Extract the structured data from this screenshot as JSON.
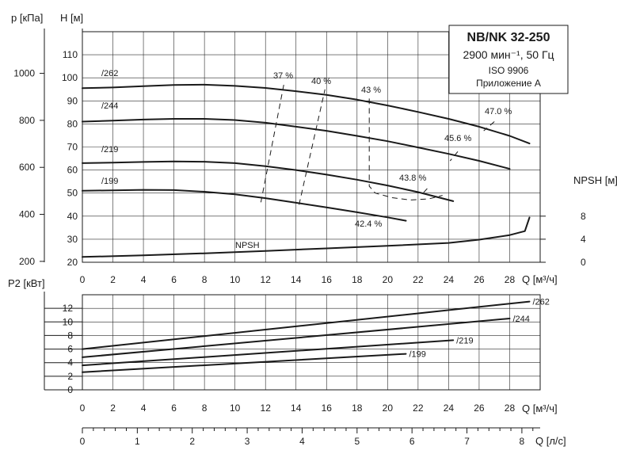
{
  "chart_data": [
    {
      "type": "line",
      "title": "NB/NK 32-250",
      "subtitle": "2900 мин⁻¹, 50 Гц",
      "notes": [
        "ISO 9906",
        "Приложение A"
      ],
      "xlabel": "Q [м³/ч]",
      "xlim": [
        0,
        30
      ],
      "x_ticks": [
        "0",
        "2",
        "4",
        "6",
        "8",
        "10",
        "12",
        "14",
        "16",
        "18",
        "20",
        "22",
        "24",
        "26",
        "28"
      ],
      "ylabel": "H [м]",
      "ylim": [
        20,
        120
      ],
      "y_ticks": [
        "20",
        "30",
        "40",
        "50",
        "60",
        "70",
        "80",
        "90",
        "100",
        "110"
      ],
      "y2label": "p [кПа]",
      "y2_ticks": [
        "200",
        "400",
        "600",
        "800",
        "1000"
      ],
      "y3label": "NPSH [м]",
      "y3_ticks": [
        "0",
        "4",
        "8"
      ],
      "series": [
        {
          "name": "/262",
          "x": [
            0,
            2,
            4,
            6,
            8,
            10,
            12,
            14,
            16,
            18,
            20,
            22,
            24,
            26,
            28,
            29.3
          ],
          "y": [
            95.5,
            95.8,
            96.4,
            96.9,
            97.0,
            96.5,
            95.6,
            94.2,
            92.6,
            90.5,
            88.0,
            85.2,
            82.2,
            78.8,
            74.8,
            71.5
          ]
        },
        {
          "name": "/244",
          "x": [
            0,
            2,
            4,
            6,
            8,
            10,
            12,
            14,
            16,
            18,
            20,
            22,
            24,
            26,
            28
          ],
          "y": [
            81.0,
            81.4,
            81.9,
            82.2,
            82.2,
            81.7,
            80.5,
            78.8,
            77.0,
            74.8,
            72.5,
            69.8,
            67.0,
            64.0,
            60.5
          ]
        },
        {
          "name": "/219",
          "x": [
            0,
            2,
            4,
            6,
            8,
            10,
            12,
            14,
            16,
            18,
            20,
            22,
            24.3
          ],
          "y": [
            63.0,
            63.2,
            63.5,
            63.7,
            63.6,
            63.0,
            61.7,
            60.0,
            58.0,
            55.8,
            53.3,
            50.4,
            46.5
          ]
        },
        {
          "name": "/199",
          "x": [
            0,
            2,
            4,
            6,
            8,
            10,
            12,
            14,
            16,
            18,
            20,
            21.2
          ],
          "y": [
            51.0,
            51.2,
            51.4,
            51.3,
            50.6,
            49.5,
            47.8,
            45.8,
            43.8,
            41.7,
            39.5,
            38.0
          ]
        },
        {
          "name": "NPSH",
          "x": [
            0,
            4,
            8,
            12,
            16,
            20,
            24,
            26,
            28,
            29,
            29.3
          ],
          "y": [
            22.3,
            23.0,
            23.9,
            24.9,
            26.0,
            27.1,
            28.4,
            29.8,
            31.8,
            33.5,
            39.4
          ]
        }
      ],
      "efficiency_labels": [
        "37 %",
        "40 %",
        "43 %",
        "47.0 %",
        "45.6 %",
        "43.8 %",
        "42.4 %"
      ],
      "efficiency_lines": [
        {
          "x": [
            11.7,
            13.2
          ],
          "y": [
            46,
            97
          ]
        },
        {
          "x": [
            14.2,
            15.9
          ],
          "y": [
            45,
            95
          ]
        },
        {
          "x": [
            18.8,
            18.8,
            19.2,
            20.3,
            21.5,
            22.7,
            23.6
          ],
          "y": [
            91,
            53,
            50,
            48,
            47,
            47.5,
            49
          ]
        },
        {
          "x": [
            27.0,
            26.3
          ],
          "y": [
            81,
            77
          ]
        },
        {
          "x": [
            24.6,
            24.1
          ],
          "y": [
            68,
            64
          ]
        },
        {
          "x": [
            22.6,
            22.2
          ],
          "y": [
            52,
            49
          ]
        }
      ]
    },
    {
      "type": "line",
      "ylabel": "P2 [кВт]",
      "xlabel": "Q [м³/ч]",
      "xlim": [
        0,
        30
      ],
      "x_ticks": [
        "0",
        "2",
        "4",
        "6",
        "8",
        "10",
        "12",
        "14",
        "16",
        "18",
        "20",
        "22",
        "24",
        "26",
        "28"
      ],
      "ylim": [
        0,
        14
      ],
      "y_ticks": [
        "0",
        "2",
        "4",
        "6",
        "8",
        "10",
        "12"
      ],
      "series": [
        {
          "name": "/262",
          "x": [
            0,
            29.3
          ],
          "y": [
            6.0,
            13.0
          ]
        },
        {
          "name": "/244",
          "x": [
            0,
            28
          ],
          "y": [
            4.8,
            10.5
          ]
        },
        {
          "name": "/219",
          "x": [
            0,
            24.3
          ],
          "y": [
            3.6,
            7.3
          ]
        },
        {
          "name": "/199",
          "x": [
            0,
            21.2
          ],
          "y": [
            2.6,
            5.3
          ]
        }
      ]
    },
    {
      "type": "axis",
      "xlabel": "Q [л/с]",
      "xlim": [
        0,
        8.333
      ],
      "x_ticks": [
        "0",
        "1",
        "2",
        "3",
        "4",
        "5",
        "6",
        "7",
        "8"
      ]
    }
  ]
}
